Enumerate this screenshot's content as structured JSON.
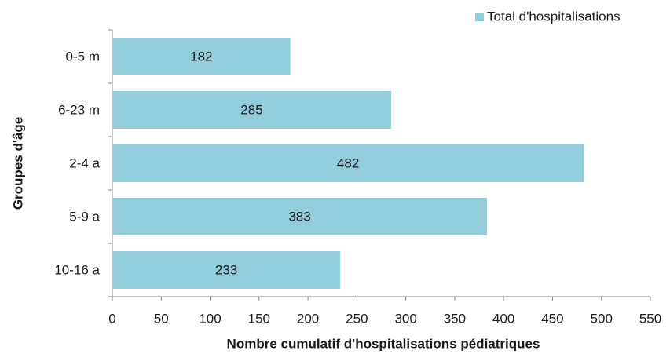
{
  "chart_data": {
    "type": "bar",
    "orientation": "horizontal",
    "xlabel": "Nombre cumulatif d'hospitalisations pédiatriques",
    "ylabel": "Groupes d'âge",
    "categories": [
      "0-5 m",
      "6-23 m",
      "2-4 a",
      "5-9 a",
      "10-16 a"
    ],
    "series": [
      {
        "name": "Total d'hospitalisations",
        "color": "#92cddc",
        "values": [
          182,
          285,
          482,
          383,
          233
        ]
      }
    ],
    "xlim": [
      0,
      550
    ],
    "xticks": [
      0,
      50,
      100,
      150,
      200,
      250,
      300,
      350,
      400,
      450,
      500,
      550
    ],
    "grid": false,
    "legend": "top-right",
    "data_labels": true
  }
}
